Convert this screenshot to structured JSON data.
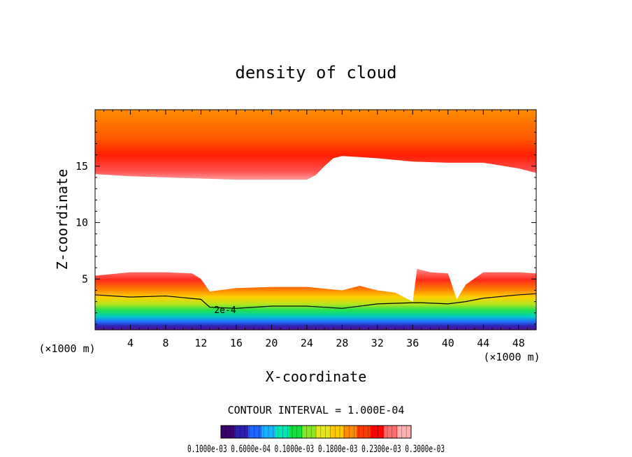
{
  "chart_data": {
    "type": "heatmap",
    "title": "density of cloud",
    "xlabel": "X-coordinate",
    "ylabel": "Z-coordinate",
    "x_unit_label": "(×1000 m)",
    "x_unit_label_right": "(×1000 m)",
    "xlim": [
      0,
      50
    ],
    "ylim": [
      0.5,
      20
    ],
    "xticks": [
      4,
      8,
      12,
      16,
      20,
      24,
      28,
      32,
      36,
      40,
      44,
      48
    ],
    "yticks": [
      5,
      10,
      15
    ],
    "contour_interval_text": "CONTOUR INTERVAL = 1.000E-04",
    "contour_label": "2e-4",
    "colorbar_labels_text": "0.1000e-03 0.6000e-04 0.1000e-03 0.1800e-03 0.2300e-03 0.3000e-03",
    "colorbar_colors": [
      "#3a006e",
      "#2d1fb0",
      "#1e64ff",
      "#19b4ff",
      "#00e6b4",
      "#10e040",
      "#8ce628",
      "#e6e61e",
      "#ffc800",
      "#ff8c00",
      "#ff3c00",
      "#ff0000",
      "#ff6e6e",
      "#ffb0b0"
    ],
    "upper_cloud_base_profile": {
      "x": [
        0,
        4,
        8,
        12,
        16,
        20,
        24,
        25,
        26,
        27,
        28,
        32,
        36,
        40,
        44,
        48,
        50
      ],
      "z": [
        14.3,
        14.1,
        14.0,
        13.9,
        13.8,
        13.8,
        13.8,
        14.2,
        15.0,
        15.7,
        15.9,
        15.7,
        15.4,
        15.3,
        15.3,
        14.8,
        14.4
      ]
    },
    "lower_cloud_top_profile": {
      "x": [
        0,
        4,
        8,
        11,
        12,
        13,
        16,
        20,
        24,
        28,
        30,
        32,
        34,
        36,
        36.5,
        38,
        40,
        41,
        42,
        44,
        48,
        50
      ],
      "z": [
        5.3,
        5.6,
        5.6,
        5.5,
        5.0,
        3.9,
        4.2,
        4.3,
        4.3,
        4.0,
        4.4,
        4.0,
        3.8,
        3.0,
        5.9,
        5.6,
        5.5,
        3.2,
        4.5,
        5.6,
        5.6,
        5.5
      ]
    },
    "contour_2e4_profile": {
      "x": [
        0,
        4,
        8,
        12,
        13,
        16,
        20,
        24,
        28,
        32,
        36,
        37,
        40,
        42,
        44,
        48,
        50
      ],
      "z": [
        3.6,
        3.4,
        3.5,
        3.2,
        2.5,
        2.4,
        2.6,
        2.6,
        2.4,
        2.8,
        2.9,
        2.9,
        2.8,
        3.0,
        3.3,
        3.6,
        3.7
      ]
    }
  }
}
